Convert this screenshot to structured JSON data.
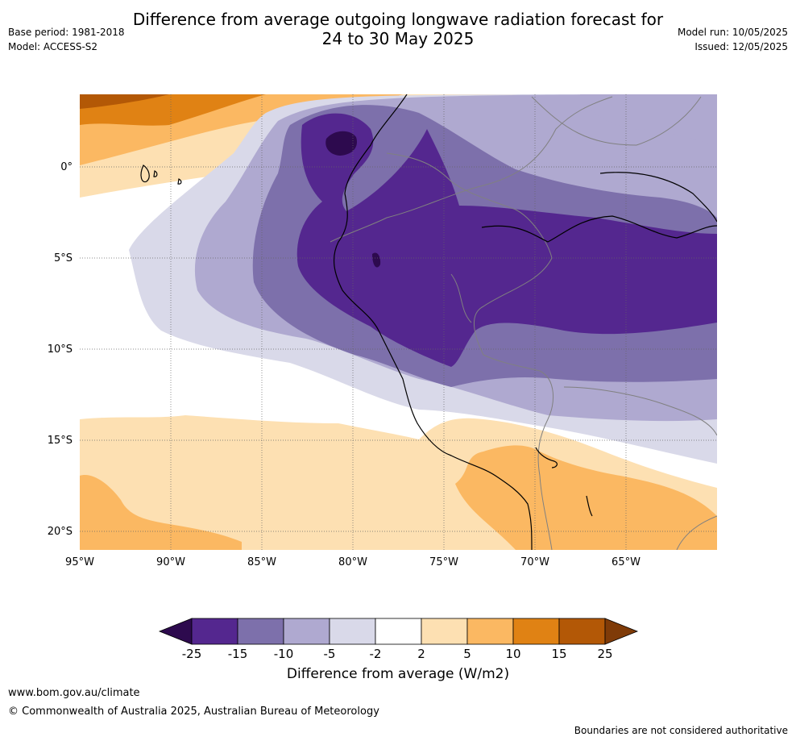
{
  "header": {
    "title_line1": "Difference from average outgoing longwave radiation forecast for",
    "title_line2": "24 to 30 May 2025",
    "base_period": "Base period: 1981-2018",
    "model": "Model: ACCESS-S2",
    "model_run": "Model run: 10/05/2025",
    "issued": "Issued: 12/05/2025"
  },
  "map": {
    "region": "Western South America (Peru)",
    "lat_labels": [
      "0°",
      "5°S",
      "10°S",
      "15°S",
      "20°S"
    ],
    "lon_labels": [
      "95°W",
      "90°W",
      "85°W",
      "80°W",
      "75°W",
      "70°W",
      "65°W"
    ]
  },
  "legend": {
    "ticks": [
      "-25",
      "-15",
      "-10",
      "-5",
      "-2",
      "2",
      "5",
      "10",
      "15",
      "25"
    ],
    "colors": [
      "#2d0a4e",
      "#54278f",
      "#7d70ab",
      "#afa9d0",
      "#d9d9e9",
      "#ffffff",
      "#fde0b2",
      "#fbb862",
      "#e08214",
      "#b35806",
      "#7f3b08"
    ],
    "label": "Difference from average (W/m2)"
  },
  "footer": {
    "url": "www.bom.gov.au/climate",
    "copyright": "© Commonwealth of Australia 2025, Australian Bureau of Meteorology",
    "disclaimer": "Boundaries are not considered authoritative"
  }
}
